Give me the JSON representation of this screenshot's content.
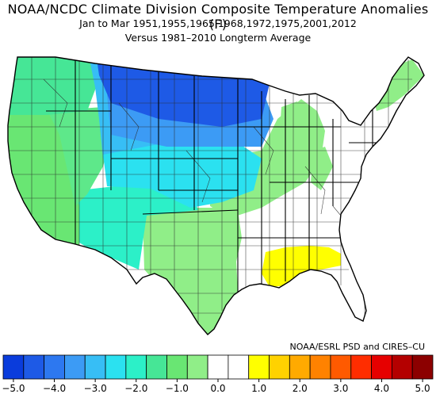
{
  "title": "NOAA/NCDC Climate Division Composite Temperature Anomalies (F)",
  "subtitle": "Jan to Mar  1951,1955,1965,1968,1972,1975,2001,2012",
  "subtitle2": "Versus 1981–2010 Longterm Average",
  "credit": "NOAA/ESRL PSD and CIRES–CU",
  "colorbar": {
    "colors": [
      "#0a3cdc",
      "#1e5ae6",
      "#2d78f0",
      "#3c9bf5",
      "#37bef5",
      "#2be1f0",
      "#2cf0c8",
      "#46e696",
      "#69e673",
      "#90ee88",
      "#ffffff",
      "#ffffff",
      "#ffff00",
      "#ffd200",
      "#ffaa00",
      "#ff8200",
      "#ff5a00",
      "#ff2d00",
      "#e60000",
      "#b40000",
      "#8c0000"
    ],
    "ticks": [
      "−5.0",
      "−4.0",
      "−3.0",
      "−2.0",
      "−1.0",
      "0.0",
      "1.0",
      "2.0",
      "3.0",
      "4.0",
      "5.0"
    ]
  },
  "map": {
    "legend_min": -5.0,
    "legend_max": 5.0,
    "regions": [
      {
        "name": "north-pacific-coast",
        "anomaly": -2.2,
        "color": "#46e696"
      },
      {
        "name": "california",
        "anomaly": -1.6,
        "color": "#69e673"
      },
      {
        "name": "great-basin",
        "anomaly": -1.7,
        "color": "#5ee88a"
      },
      {
        "name": "northern-rockies",
        "anomaly": -3.0,
        "color": "#37bef5"
      },
      {
        "name": "northern-plains",
        "anomaly": -4.2,
        "color": "#1e5ae6"
      },
      {
        "name": "central-plains",
        "anomaly": -2.6,
        "color": "#2be1f0"
      },
      {
        "name": "southwest",
        "anomaly": -2.0,
        "color": "#2cf0c8"
      },
      {
        "name": "texas-gulf",
        "anomaly": -1.0,
        "color": "#90ee88"
      },
      {
        "name": "midwest",
        "anomaly": -1.2,
        "color": "#90ee88"
      },
      {
        "name": "east-coast",
        "anomaly": 0.0,
        "color": "#ffffff"
      },
      {
        "name": "deep-south",
        "anomaly": 1.0,
        "color": "#ffff00"
      }
    ]
  }
}
